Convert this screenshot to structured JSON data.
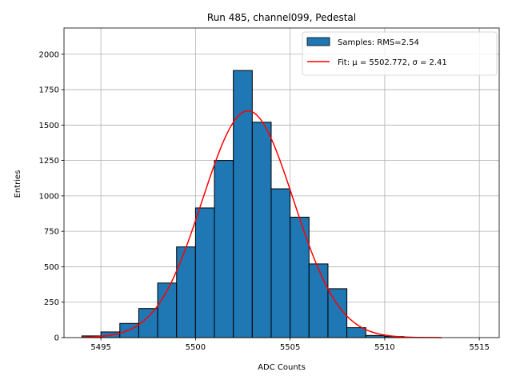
{
  "chart_data": {
    "type": "bar",
    "title": "Run 485, channel099, Pedestal",
    "xlabel": "ADC Counts",
    "ylabel": "Entries",
    "xlim": [
      5493.05,
      5516.05
    ],
    "ylim": [
      0,
      2185
    ],
    "xticks": [
      5495,
      5500,
      5505,
      5510,
      5515
    ],
    "yticks": [
      0,
      250,
      500,
      750,
      1000,
      1250,
      1500,
      1750,
      2000
    ],
    "grid": true,
    "bar_color": "#1f77b4",
    "fit_color": "#ff0000",
    "bins": {
      "edges": [
        5494,
        5495,
        5496,
        5497,
        5498,
        5499,
        5500,
        5501,
        5502,
        5503,
        5504,
        5505,
        5506,
        5507,
        5508,
        5509,
        5510,
        5511,
        5512
      ],
      "values": [
        12,
        40,
        100,
        205,
        385,
        640,
        915,
        1250,
        1885,
        1520,
        1050,
        850,
        520,
        345,
        70,
        15,
        8,
        2
      ]
    },
    "fit": {
      "mu": 5502.772,
      "sigma": 2.41,
      "amplitude": 1600,
      "x_range": [
        5494,
        5513
      ]
    },
    "legend": {
      "position": "top-right",
      "entries": [
        {
          "text": "Samples: RMS=2.54",
          "kind": "patch",
          "color": "#1f77b4"
        },
        {
          "text": "Fit: μ = 5502.772, σ = 2.41",
          "kind": "line",
          "color": "#ff0000"
        }
      ]
    }
  }
}
